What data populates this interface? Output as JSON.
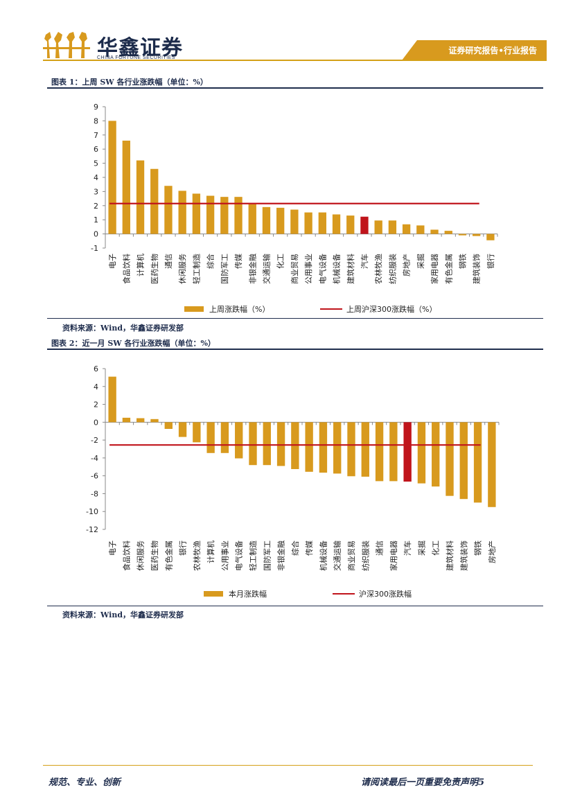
{
  "header": {
    "brand_cn": "华鑫证券",
    "brand_en": "CHINA FORTUNE SECURITIES",
    "report_type": "证券研究报告•行业报告"
  },
  "colors": {
    "bar": "#d89a1e",
    "highlight_bar": "#c0141b",
    "benchmark_line": "#c0141b",
    "header_tab": "#d89a1e",
    "rule": "#1f2d4d"
  },
  "figures": [
    {
      "title": "图表 1：上周 SW 各行业涨跌幅（单位：%）",
      "source": "资料来源：Wind，华鑫证券研发部"
    },
    {
      "title": "图表 2：近一月 SW 各行业涨跌幅（单位：%）",
      "source": "资料来源：Wind，华鑫证券研发部"
    }
  ],
  "chart_data": [
    {
      "type": "bar",
      "categories": [
        "电子",
        "食品饮料",
        "计算机",
        "医药生物",
        "通信",
        "休闲服务",
        "轻工制造",
        "综合",
        "国防军工",
        "传媒",
        "非银金融",
        "交通运输",
        "化工",
        "商业贸易",
        "公用事业",
        "电气设备",
        "机械设备",
        "建筑材料",
        "汽车",
        "农林牧渔",
        "纺织服装",
        "房地产",
        "采掘",
        "家用电器",
        "有色金属",
        "钢铁",
        "建筑装饰",
        "银行"
      ],
      "series": [
        {
          "name": "上周涨跌幅（%）",
          "values": [
            8.0,
            6.6,
            5.2,
            4.6,
            3.4,
            3.05,
            2.85,
            2.7,
            2.62,
            2.62,
            2.1,
            1.9,
            1.85,
            1.72,
            1.52,
            1.52,
            1.38,
            1.3,
            1.22,
            0.95,
            0.95,
            0.68,
            0.6,
            0.3,
            0.22,
            -0.1,
            -0.15,
            -0.45
          ]
        },
        {
          "name": "上周沪深300涨跌幅（%）",
          "type": "line",
          "value": 2.15
        }
      ],
      "highlight_category": "汽车",
      "ylim": [
        -1,
        9
      ],
      "yticks": [
        -1,
        0,
        1,
        2,
        3,
        4,
        5,
        6,
        7,
        8,
        9
      ],
      "legend": "bottom"
    },
    {
      "type": "bar",
      "categories": [
        "电子",
        "食品饮料",
        "休闲服务",
        "医药生物",
        "有色金属",
        "银行",
        "农林牧渔",
        "计算机",
        "公用事业",
        "电气设备",
        "轻工制造",
        "国防军工",
        "非银金融",
        "综合",
        "传媒",
        "机械设备",
        "交通运输",
        "商业贸易",
        "纺织服装",
        "通信",
        "家用电器",
        "汽车",
        "采掘",
        "化工",
        "建筑材料",
        "建筑装饰",
        "钢铁",
        "房地产"
      ],
      "series": [
        {
          "name": "本月涨跌幅",
          "values": [
            5.1,
            0.5,
            0.45,
            0.35,
            -0.75,
            -1.65,
            -2.25,
            -3.45,
            -3.45,
            -4.05,
            -4.8,
            -4.8,
            -4.9,
            -5.25,
            -5.55,
            -5.65,
            -5.75,
            -6.05,
            -6.1,
            -6.6,
            -6.6,
            -6.65,
            -6.85,
            -7.2,
            -8.25,
            -8.6,
            -9.0,
            -9.5
          ]
        },
        {
          "name": "沪深300涨跌幅",
          "type": "line",
          "value": -2.55
        }
      ],
      "highlight_category": "汽车",
      "ylim": [
        -12,
        6
      ],
      "yticks": [
        -12,
        -10,
        -8,
        -6,
        -4,
        -2,
        0,
        2,
        4,
        6
      ],
      "legend": "bottom"
    }
  ],
  "footer": {
    "left": "规范、专业、创新",
    "right": "请阅读最后一页重要免责声明5"
  }
}
